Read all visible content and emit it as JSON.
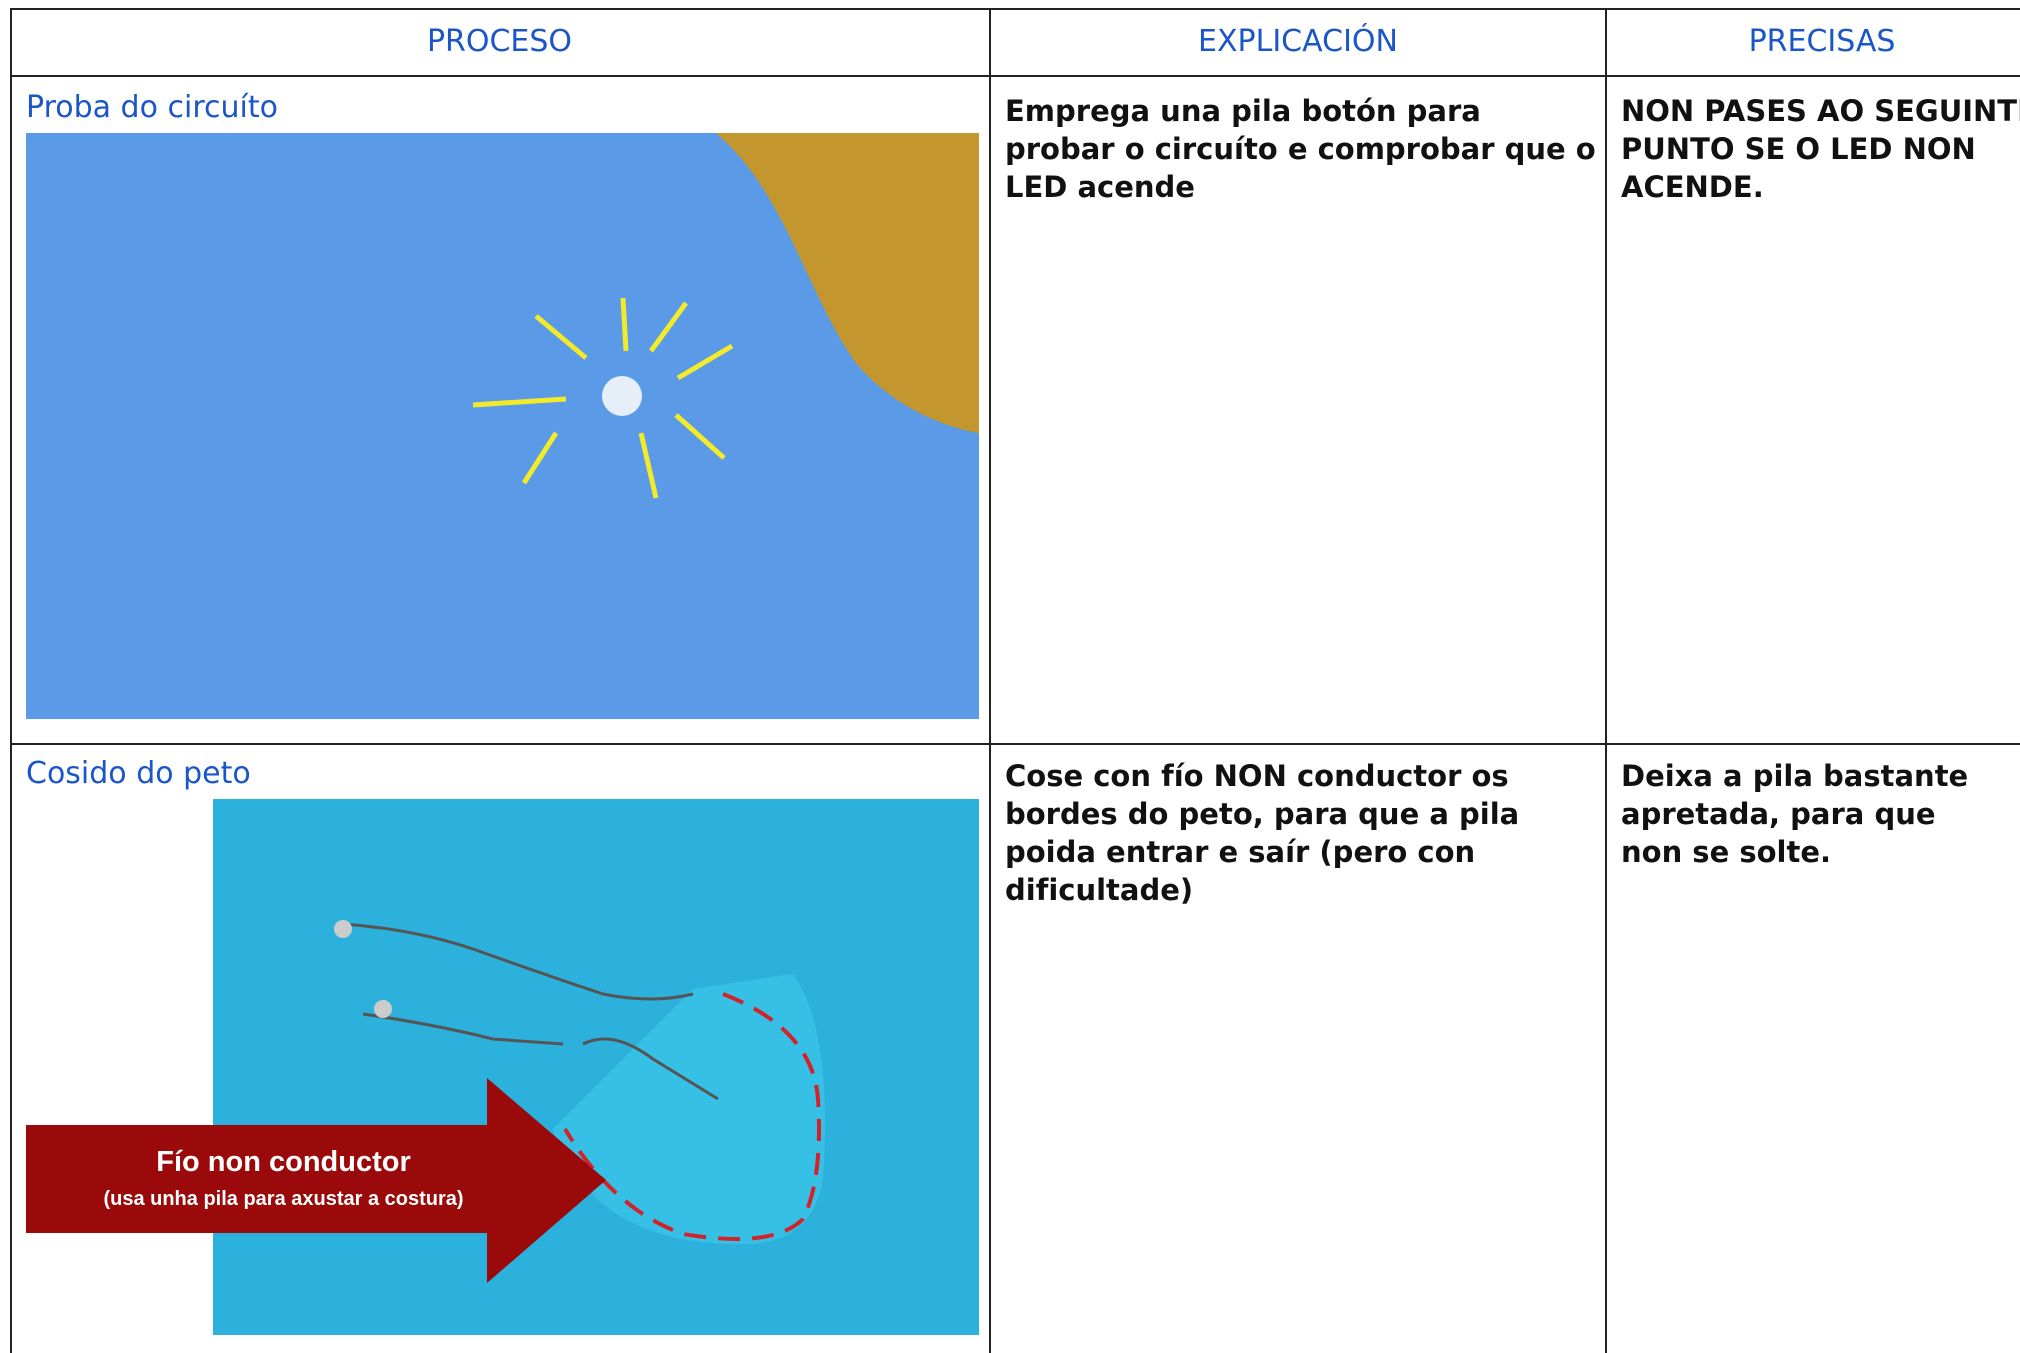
{
  "table": {
    "headers": [
      "PROCESO",
      "EXPLICACIÓN",
      "PRECISAS"
    ],
    "rows": [
      {
        "process": "Proba do circuíto",
        "explanation": "Emprega una pila botón para probar o circuíto e comprobar que o LED acende",
        "precisas": "NON PASES AO SEGUINTE PUNTO SE O LED NON ACENDE."
      },
      {
        "process": "Cosido do peto",
        "image_caption": "Fío non conductor",
        "image_subcaption": "(usa unha pila para axustar a costura)",
        "explanation": "Cose con fío NON conductor os bordes do peto, para que a pila poida entrar e saír (pero con dificultade)",
        "precisas": "Deixa a pila bastante apretada, para que non se solte."
      }
    ]
  }
}
